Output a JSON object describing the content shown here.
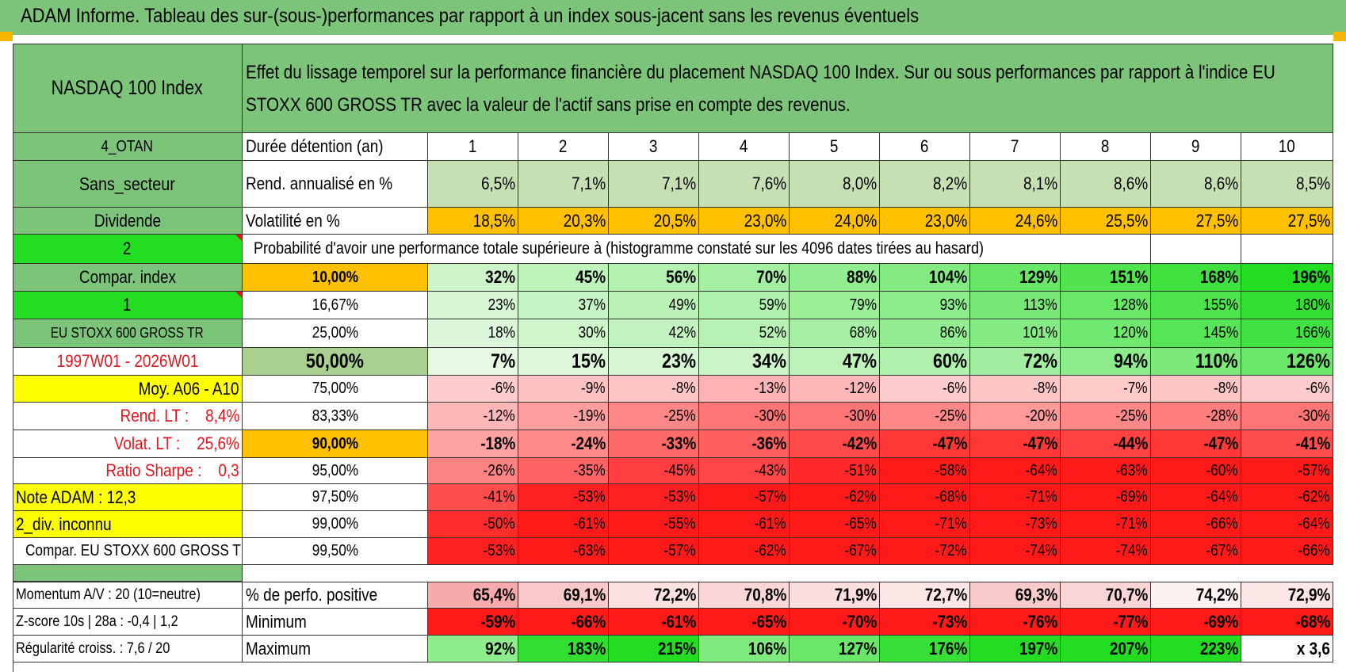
{
  "title": "ADAM Informe. Tableau des sur-(sous-)performances par rapport à un index sous-jacent sans les revenus éventuels",
  "header": {
    "fund": "NASDAQ 100 Index",
    "description": "Effet du lissage temporel sur la performance financière du placement NASDAQ 100 Index. Sur ou sous performances par rapport à l'indice EU STOXX 600 GROSS TR avec la valeur de l'actif sans prise en compte des revenus."
  },
  "left_labels": [
    "4_OTAN",
    "Sans_secteur",
    "Dividende",
    "2",
    "Compar. index",
    "1",
    "EU STOXX 600 GROSS TR",
    "1997W01 - 2026W01",
    "Moy. A06 - A10",
    "Rend. LT :    8,4%",
    "Volat. LT :    25,6%",
    "Ratio Sharpe :    0,3",
    "Note ADAM : 12,3",
    "2_div. inconnu",
    "Compar. EU STOXX 600 GROSS TR"
  ],
  "row_labels": {
    "duration": "Durée détention (an)",
    "return": "Rend. annualisé en %",
    "volatility": "Volatilité en %"
  },
  "years": [
    "1",
    "2",
    "3",
    "4",
    "5",
    "6",
    "7",
    "8",
    "9",
    "10"
  ],
  "returns": [
    "6,5%",
    "7,1%",
    "7,1%",
    "7,6%",
    "8,0%",
    "8,2%",
    "8,1%",
    "8,6%",
    "8,6%",
    "8,5%"
  ],
  "volatility": [
    "18,5%",
    "20,3%",
    "20,5%",
    "23,0%",
    "24,0%",
    "23,0%",
    "24,6%",
    "25,5%",
    "27,5%",
    "27,5%"
  ],
  "prob_heading": "Probabilité d'avoir une performance totale supérieure à (histogramme constaté sur les 4096 dates tirées au hasard)",
  "prob_rows": [
    {
      "p": "10,00%",
      "v": [
        "32%",
        "45%",
        "56%",
        "70%",
        "88%",
        "104%",
        "129%",
        "151%",
        "168%",
        "196%"
      ]
    },
    {
      "p": "16,67%",
      "v": [
        "23%",
        "37%",
        "49%",
        "59%",
        "79%",
        "93%",
        "113%",
        "128%",
        "155%",
        "180%"
      ]
    },
    {
      "p": "25,00%",
      "v": [
        "18%",
        "30%",
        "42%",
        "52%",
        "68%",
        "86%",
        "101%",
        "120%",
        "145%",
        "166%"
      ]
    },
    {
      "p": "50,00%",
      "v": [
        "7%",
        "15%",
        "23%",
        "34%",
        "47%",
        "60%",
        "72%",
        "94%",
        "110%",
        "126%"
      ]
    },
    {
      "p": "75,00%",
      "v": [
        "-6%",
        "-9%",
        "-8%",
        "-13%",
        "-12%",
        "-6%",
        "-8%",
        "-7%",
        "-8%",
        "-6%"
      ]
    },
    {
      "p": "83,33%",
      "v": [
        "-12%",
        "-19%",
        "-25%",
        "-30%",
        "-30%",
        "-25%",
        "-20%",
        "-25%",
        "-28%",
        "-30%"
      ]
    },
    {
      "p": "90,00%",
      "v": [
        "-18%",
        "-24%",
        "-33%",
        "-36%",
        "-42%",
        "-47%",
        "-47%",
        "-44%",
        "-47%",
        "-41%"
      ]
    },
    {
      "p": "95,00%",
      "v": [
        "-26%",
        "-35%",
        "-45%",
        "-43%",
        "-51%",
        "-58%",
        "-64%",
        "-63%",
        "-60%",
        "-57%"
      ]
    },
    {
      "p": "97,50%",
      "v": [
        "-41%",
        "-53%",
        "-53%",
        "-57%",
        "-62%",
        "-68%",
        "-71%",
        "-69%",
        "-64%",
        "-62%"
      ]
    },
    {
      "p": "99,00%",
      "v": [
        "-50%",
        "-61%",
        "-55%",
        "-61%",
        "-65%",
        "-71%",
        "-73%",
        "-71%",
        "-66%",
        "-64%"
      ]
    },
    {
      "p": "99,50%",
      "v": [
        "-53%",
        "-63%",
        "-57%",
        "-62%",
        "-67%",
        "-72%",
        "-74%",
        "-74%",
        "-67%",
        "-66%"
      ]
    }
  ],
  "stats": [
    {
      "left": "Momentum A/V : 20 (10=neutre)",
      "label": "% de perfo. positive",
      "v": [
        "65,4%",
        "69,1%",
        "72,2%",
        "70,8%",
        "71,9%",
        "72,7%",
        "69,3%",
        "70,7%",
        "74,2%",
        "72,9%"
      ]
    },
    {
      "left": "Z-score 10s | 28a : -0,4 | 1,2",
      "label": "Minimum",
      "v": [
        "-59%",
        "-66%",
        "-61%",
        "-65%",
        "-70%",
        "-73%",
        "-76%",
        "-77%",
        "-69%",
        "-68%"
      ]
    },
    {
      "left": "Régularité croiss. : 7,6 / 20",
      "label": "Maximum",
      "v": [
        "92%",
        "183%",
        "215%",
        "106%",
        "127%",
        "176%",
        "197%",
        "207%",
        "223%",
        "x 3,6"
      ]
    }
  ],
  "colors": {
    "header_green": "#7cc47a",
    "return_green": "#c6e0b4",
    "vol_orange": "#ffc000",
    "bright_green": "#22dd22",
    "yellow": "#ffff00",
    "red": "#e8141c"
  }
}
